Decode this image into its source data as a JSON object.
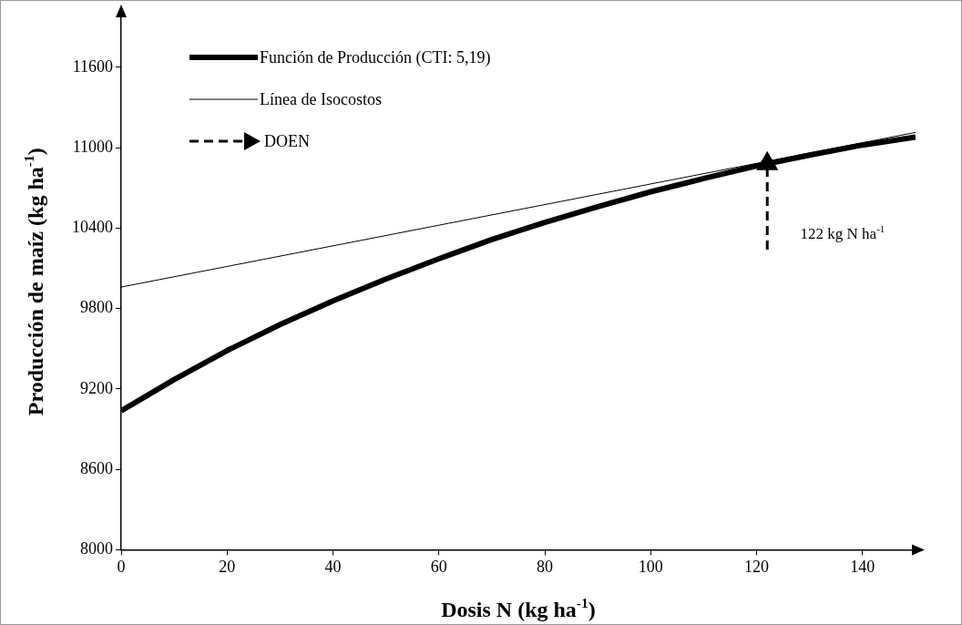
{
  "chart_data": {
    "type": "line",
    "xlabel": "Dosis N (kg ha$^{-1}$)",
    "ylabel": "Producción de maíz (kg ha$^{-1}$)",
    "xlim": [
      0,
      150
    ],
    "xticks": [
      0,
      20,
      40,
      60,
      80,
      100,
      120,
      140
    ],
    "ylim": [
      8000,
      12000
    ],
    "yticks": [
      8000,
      8600,
      9200,
      9800,
      10400,
      11000,
      11600
    ],
    "legend": "top left",
    "marker": "none",
    "series": [
      {
        "name": "Función de Producción (CTI: 5,19)",
        "color": "#000000",
        "x": [
          0,
          10,
          20,
          30,
          40,
          50,
          60,
          70,
          80,
          90,
          100,
          110,
          120,
          130,
          140,
          150
        ],
        "values": [
          9036,
          9270,
          9486,
          9680,
          9857,
          10020,
          10171,
          10315,
          10443,
          10560,
          10671,
          10770,
          10864,
          10945,
          11020,
          11079
        ]
      },
      {
        "name": "Línea de Isocostos",
        "color": "#000000",
        "x": [
          0,
          150
        ],
        "values": [
          9960,
          11114
        ]
      },
      {
        "name": "DOEN",
        "color": "#000000",
        "line_style": "dashed",
        "marker": "triangle",
        "x": [
          122,
          122
        ],
        "values": [
          10240,
          10880
        ]
      }
    ],
    "annotations": [
      "122 kg N ha$^{-1}$"
    ]
  }
}
